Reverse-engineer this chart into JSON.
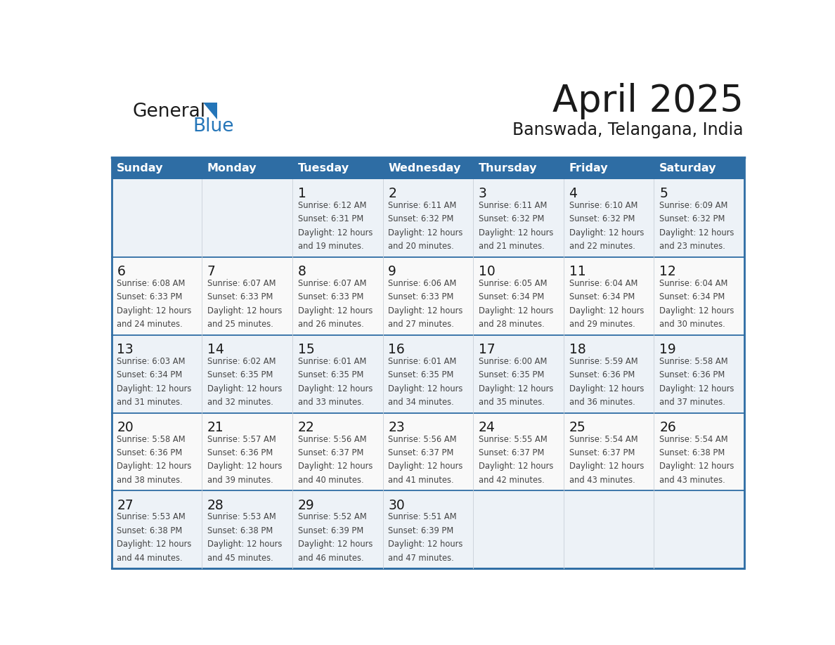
{
  "title": "April 2025",
  "subtitle": "Banswada, Telangana, India",
  "header_color": "#2E6DA4",
  "header_text_color": "#FFFFFF",
  "day_names": [
    "Sunday",
    "Monday",
    "Tuesday",
    "Wednesday",
    "Thursday",
    "Friday",
    "Saturday"
  ],
  "days": [
    {
      "day": 1,
      "col": 2,
      "row": 0,
      "sunrise": "6:12 AM",
      "sunset": "6:31 PM",
      "daylight_h": "12 hours",
      "daylight_m": "19 minutes"
    },
    {
      "day": 2,
      "col": 3,
      "row": 0,
      "sunrise": "6:11 AM",
      "sunset": "6:32 PM",
      "daylight_h": "12 hours",
      "daylight_m": "20 minutes"
    },
    {
      "day": 3,
      "col": 4,
      "row": 0,
      "sunrise": "6:11 AM",
      "sunset": "6:32 PM",
      "daylight_h": "12 hours",
      "daylight_m": "21 minutes"
    },
    {
      "day": 4,
      "col": 5,
      "row": 0,
      "sunrise": "6:10 AM",
      "sunset": "6:32 PM",
      "daylight_h": "12 hours",
      "daylight_m": "22 minutes"
    },
    {
      "day": 5,
      "col": 6,
      "row": 0,
      "sunrise": "6:09 AM",
      "sunset": "6:32 PM",
      "daylight_h": "12 hours",
      "daylight_m": "23 minutes"
    },
    {
      "day": 6,
      "col": 0,
      "row": 1,
      "sunrise": "6:08 AM",
      "sunset": "6:33 PM",
      "daylight_h": "12 hours",
      "daylight_m": "24 minutes"
    },
    {
      "day": 7,
      "col": 1,
      "row": 1,
      "sunrise": "6:07 AM",
      "sunset": "6:33 PM",
      "daylight_h": "12 hours",
      "daylight_m": "25 minutes"
    },
    {
      "day": 8,
      "col": 2,
      "row": 1,
      "sunrise": "6:07 AM",
      "sunset": "6:33 PM",
      "daylight_h": "12 hours",
      "daylight_m": "26 minutes"
    },
    {
      "day": 9,
      "col": 3,
      "row": 1,
      "sunrise": "6:06 AM",
      "sunset": "6:33 PM",
      "daylight_h": "12 hours",
      "daylight_m": "27 minutes"
    },
    {
      "day": 10,
      "col": 4,
      "row": 1,
      "sunrise": "6:05 AM",
      "sunset": "6:34 PM",
      "daylight_h": "12 hours",
      "daylight_m": "28 minutes"
    },
    {
      "day": 11,
      "col": 5,
      "row": 1,
      "sunrise": "6:04 AM",
      "sunset": "6:34 PM",
      "daylight_h": "12 hours",
      "daylight_m": "29 minutes"
    },
    {
      "day": 12,
      "col": 6,
      "row": 1,
      "sunrise": "6:04 AM",
      "sunset": "6:34 PM",
      "daylight_h": "12 hours",
      "daylight_m": "30 minutes"
    },
    {
      "day": 13,
      "col": 0,
      "row": 2,
      "sunrise": "6:03 AM",
      "sunset": "6:34 PM",
      "daylight_h": "12 hours",
      "daylight_m": "31 minutes"
    },
    {
      "day": 14,
      "col": 1,
      "row": 2,
      "sunrise": "6:02 AM",
      "sunset": "6:35 PM",
      "daylight_h": "12 hours",
      "daylight_m": "32 minutes"
    },
    {
      "day": 15,
      "col": 2,
      "row": 2,
      "sunrise": "6:01 AM",
      "sunset": "6:35 PM",
      "daylight_h": "12 hours",
      "daylight_m": "33 minutes"
    },
    {
      "day": 16,
      "col": 3,
      "row": 2,
      "sunrise": "6:01 AM",
      "sunset": "6:35 PM",
      "daylight_h": "12 hours",
      "daylight_m": "34 minutes"
    },
    {
      "day": 17,
      "col": 4,
      "row": 2,
      "sunrise": "6:00 AM",
      "sunset": "6:35 PM",
      "daylight_h": "12 hours",
      "daylight_m": "35 minutes"
    },
    {
      "day": 18,
      "col": 5,
      "row": 2,
      "sunrise": "5:59 AM",
      "sunset": "6:36 PM",
      "daylight_h": "12 hours",
      "daylight_m": "36 minutes"
    },
    {
      "day": 19,
      "col": 6,
      "row": 2,
      "sunrise": "5:58 AM",
      "sunset": "6:36 PM",
      "daylight_h": "12 hours",
      "daylight_m": "37 minutes"
    },
    {
      "day": 20,
      "col": 0,
      "row": 3,
      "sunrise": "5:58 AM",
      "sunset": "6:36 PM",
      "daylight_h": "12 hours",
      "daylight_m": "38 minutes"
    },
    {
      "day": 21,
      "col": 1,
      "row": 3,
      "sunrise": "5:57 AM",
      "sunset": "6:36 PM",
      "daylight_h": "12 hours",
      "daylight_m": "39 minutes"
    },
    {
      "day": 22,
      "col": 2,
      "row": 3,
      "sunrise": "5:56 AM",
      "sunset": "6:37 PM",
      "daylight_h": "12 hours",
      "daylight_m": "40 minutes"
    },
    {
      "day": 23,
      "col": 3,
      "row": 3,
      "sunrise": "5:56 AM",
      "sunset": "6:37 PM",
      "daylight_h": "12 hours",
      "daylight_m": "41 minutes"
    },
    {
      "day": 24,
      "col": 4,
      "row": 3,
      "sunrise": "5:55 AM",
      "sunset": "6:37 PM",
      "daylight_h": "12 hours",
      "daylight_m": "42 minutes"
    },
    {
      "day": 25,
      "col": 5,
      "row": 3,
      "sunrise": "5:54 AM",
      "sunset": "6:37 PM",
      "daylight_h": "12 hours",
      "daylight_m": "43 minutes"
    },
    {
      "day": 26,
      "col": 6,
      "row": 3,
      "sunrise": "5:54 AM",
      "sunset": "6:38 PM",
      "daylight_h": "12 hours",
      "daylight_m": "43 minutes"
    },
    {
      "day": 27,
      "col": 0,
      "row": 4,
      "sunrise": "5:53 AM",
      "sunset": "6:38 PM",
      "daylight_h": "12 hours",
      "daylight_m": "44 minutes"
    },
    {
      "day": 28,
      "col": 1,
      "row": 4,
      "sunrise": "5:53 AM",
      "sunset": "6:38 PM",
      "daylight_h": "12 hours",
      "daylight_m": "45 minutes"
    },
    {
      "day": 29,
      "col": 2,
      "row": 4,
      "sunrise": "5:52 AM",
      "sunset": "6:39 PM",
      "daylight_h": "12 hours",
      "daylight_m": "46 minutes"
    },
    {
      "day": 30,
      "col": 3,
      "row": 4,
      "sunrise": "5:51 AM",
      "sunset": "6:39 PM",
      "daylight_h": "12 hours",
      "daylight_m": "47 minutes"
    }
  ],
  "num_rows": 5,
  "num_cols": 7,
  "logo_text_general": "General",
  "logo_text_blue": "Blue",
  "logo_color_general": "#1a1a1a",
  "logo_color_blue": "#2475b8",
  "logo_triangle_color": "#2475b8",
  "title_color": "#1a1a1a",
  "subtitle_color": "#1a1a1a",
  "header_border_color": "#2E6DA4",
  "cell_border_color": "#2E6DA4",
  "cell_number_color": "#1a1a1a",
  "cell_text_color": "#444444",
  "row_bg_colors": [
    "#EDF2F7",
    "#F9F9F9"
  ],
  "empty_cell_bg": "#F0F0F0"
}
